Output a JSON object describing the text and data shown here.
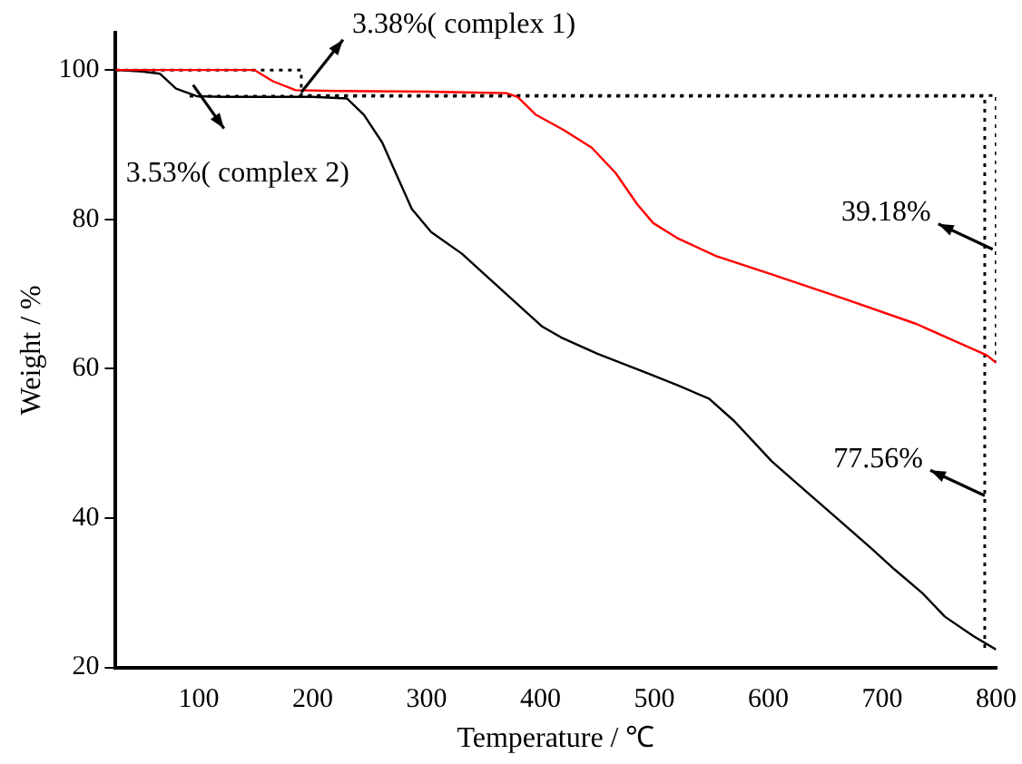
{
  "chart_data": {
    "type": "line",
    "xlabel": "Temperature / ℃",
    "ylabel": "Weight / %",
    "xlim": [
      27,
      800
    ],
    "ylim": [
      20,
      105
    ],
    "xticks": [
      100,
      200,
      300,
      400,
      500,
      600,
      700,
      800
    ],
    "yticks": [
      20,
      40,
      60,
      80,
      100
    ],
    "grid": false,
    "legend": false,
    "marker": "none",
    "series": [
      {
        "color": "#ff0000",
        "line_style": "solid",
        "x": [
          27,
          60,
          100,
          149,
          165,
          185,
          220,
          300,
          370,
          380,
          396,
          420,
          445,
          466,
          485,
          499,
          520,
          554,
          600,
          668,
          730,
          792,
          800
        ],
        "values": [
          100,
          100,
          100,
          100,
          98.5,
          97.3,
          97.2,
          97.1,
          96.9,
          96.4,
          94,
          92,
          89.6,
          86.2,
          82,
          79.5,
          77.5,
          75.1,
          72.8,
          69.3,
          66,
          61.8,
          60.8
        ]
      },
      {
        "color": "#000000",
        "line_style": "solid",
        "x": [
          27,
          50,
          66,
          80,
          98,
          120,
          200,
          230,
          245,
          261,
          275,
          287,
          304,
          331,
          370,
          401,
          418,
          450,
          494,
          520,
          548,
          570,
          603,
          630,
          657,
          690,
          711,
          735,
          755,
          780,
          800
        ],
        "values": [
          100,
          99.8,
          99.5,
          97.5,
          96.5,
          96.4,
          96.4,
          96.2,
          94,
          90.3,
          85.5,
          81.4,
          78.3,
          75.4,
          70,
          65.7,
          64.2,
          62,
          59.4,
          57.8,
          56,
          53,
          47.6,
          44,
          40.4,
          36,
          33.1,
          30,
          26.8,
          24.2,
          22.4
        ]
      },
      {
        "color": "#000000",
        "line_style": "dotted",
        "x": [
          27,
          190,
          190,
          800,
          800
        ],
        "values": [
          100,
          100,
          96.6,
          96.6,
          60.8
        ]
      },
      {
        "color": "#000000",
        "line_style": "dotted",
        "x": [
          92,
          790,
          790
        ],
        "values": [
          96.5,
          96.5,
          22.4
        ]
      }
    ],
    "annotations": [
      {
        "text": "3.38%( complex 1)",
        "x": 190,
        "y": 97
      },
      {
        "text": "3.53%( complex 2)",
        "x": 95,
        "y": 98
      },
      {
        "text": "39.18%",
        "x": 797,
        "y": 76
      },
      {
        "text": "77.56%",
        "x": 790,
        "y": 43
      }
    ]
  }
}
